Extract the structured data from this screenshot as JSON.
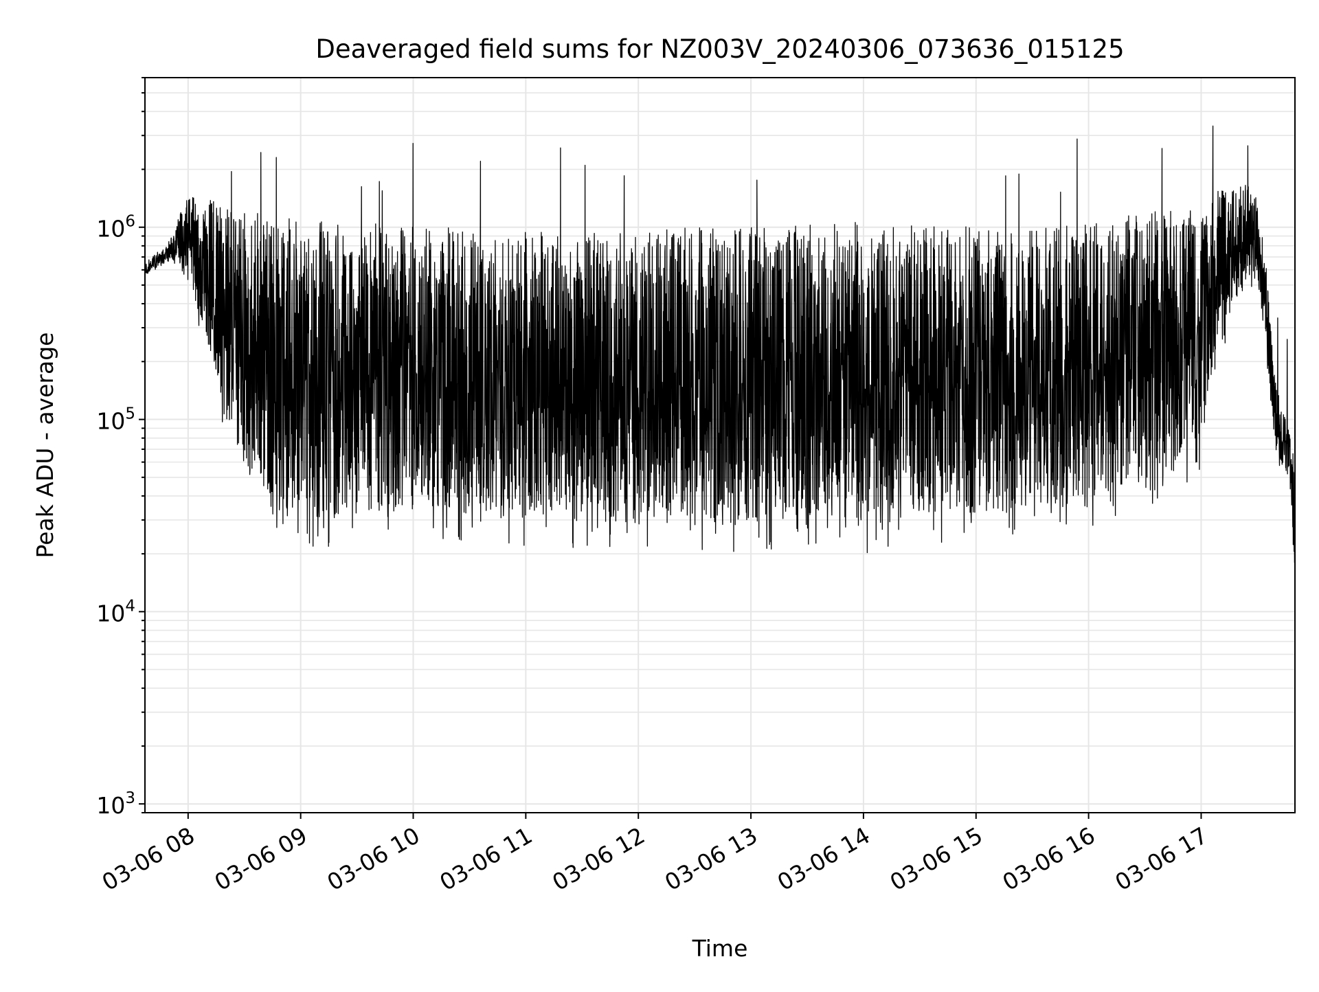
{
  "chart_data": {
    "type": "line",
    "title": "Deaveraged field sums for NZ003V_20240306_073636_015125",
    "xlabel": "Time",
    "ylabel": "Peak ADU - average",
    "x_scale": "time",
    "y_scale": "log",
    "xlim": [
      "2024-03-06 07:37",
      "2024-03-06 17:50"
    ],
    "ylim": [
      900,
      6000000
    ],
    "x_ticks": [
      {
        "value": "2024-03-06 08:00",
        "label": "03-06 08"
      },
      {
        "value": "2024-03-06 09:00",
        "label": "03-06 09"
      },
      {
        "value": "2024-03-06 10:00",
        "label": "03-06 10"
      },
      {
        "value": "2024-03-06 11:00",
        "label": "03-06 11"
      },
      {
        "value": "2024-03-06 12:00",
        "label": "03-06 12"
      },
      {
        "value": "2024-03-06 13:00",
        "label": "03-06 13"
      },
      {
        "value": "2024-03-06 14:00",
        "label": "03-06 14"
      },
      {
        "value": "2024-03-06 15:00",
        "label": "03-06 15"
      },
      {
        "value": "2024-03-06 16:00",
        "label": "03-06 16"
      },
      {
        "value": "2024-03-06 17:00",
        "label": "03-06 17"
      }
    ],
    "y_ticks": [
      {
        "value": 1000,
        "base": "10",
        "exp": "3"
      },
      {
        "value": 10000,
        "base": "10",
        "exp": "4"
      },
      {
        "value": 100000,
        "base": "10",
        "exp": "5"
      },
      {
        "value": 1000000,
        "base": "10",
        "exp": "6"
      }
    ],
    "grid": true,
    "line_color": "#000000",
    "grid_color": "#e6e6e6",
    "envelope": {
      "description_points": "time vs approximate upper and lower envelope of the oscillating signal",
      "x": [
        "2024-03-06 07:37",
        "2024-03-06 07:50",
        "2024-03-06 08:00",
        "2024-03-06 08:10",
        "2024-03-06 08:20",
        "2024-03-06 08:30",
        "2024-03-06 08:45",
        "2024-03-06 09:00",
        "2024-03-06 09:30",
        "2024-03-06 10:00",
        "2024-03-06 10:30",
        "2024-03-06 11:00",
        "2024-03-06 11:30",
        "2024-03-06 12:00",
        "2024-03-06 12:30",
        "2024-03-06 13:00",
        "2024-03-06 13:30",
        "2024-03-06 14:00",
        "2024-03-06 14:30",
        "2024-03-06 15:00",
        "2024-03-06 15:30",
        "2024-03-06 16:00",
        "2024-03-06 16:30",
        "2024-03-06 16:58",
        "2024-03-06 17:05",
        "2024-03-06 17:15",
        "2024-03-06 17:25",
        "2024-03-06 17:30",
        "2024-03-06 17:35",
        "2024-03-06 17:40",
        "2024-03-06 17:47",
        "2024-03-06 17:50"
      ],
      "upper": [
        650000,
        850000,
        1500000,
        1400000,
        1400000,
        1300000,
        1150000,
        1100000,
        1050000,
        1050000,
        1000000,
        950000,
        950000,
        950000,
        1000000,
        1000000,
        1050000,
        1100000,
        1050000,
        1000000,
        1000000,
        1050000,
        1200000,
        1300000,
        1500000,
        1600000,
        1700000,
        1400000,
        600000,
        150000,
        85000,
        60000
      ],
      "lower": [
        550000,
        650000,
        500000,
        200000,
        80000,
        40000,
        25000,
        20000,
        22000,
        22000,
        22000,
        21000,
        20000,
        20000,
        19000,
        19000,
        19500,
        20000,
        21000,
        22000,
        24000,
        27000,
        32000,
        40000,
        100000,
        300000,
        450000,
        500000,
        200000,
        60000,
        50000,
        15000
      ]
    },
    "peak_labels_note": ""
  }
}
